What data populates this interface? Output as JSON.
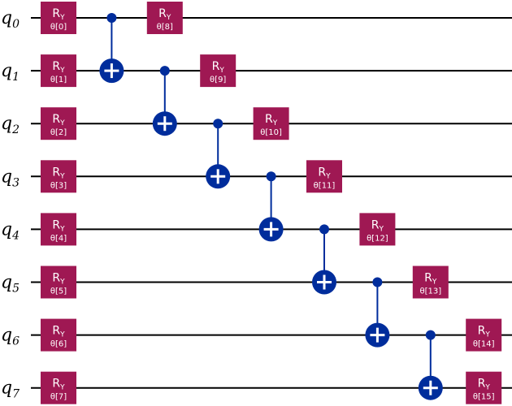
{
  "qubits": [
    {
      "name": "q",
      "index": "0"
    },
    {
      "name": "q",
      "index": "1"
    },
    {
      "name": "q",
      "index": "2"
    },
    {
      "name": "q",
      "index": "3"
    },
    {
      "name": "q",
      "index": "4"
    },
    {
      "name": "q",
      "index": "5"
    },
    {
      "name": "q",
      "index": "6"
    },
    {
      "name": "q",
      "index": "7"
    }
  ],
  "gates": [
    {
      "type": "RY",
      "label": "R",
      "sub": "Y",
      "param": "θ[0]",
      "qubit": 0,
      "column": 0
    },
    {
      "type": "RY",
      "label": "R",
      "sub": "Y",
      "param": "θ[1]",
      "qubit": 1,
      "column": 0
    },
    {
      "type": "RY",
      "label": "R",
      "sub": "Y",
      "param": "θ[2]",
      "qubit": 2,
      "column": 0
    },
    {
      "type": "RY",
      "label": "R",
      "sub": "Y",
      "param": "θ[3]",
      "qubit": 3,
      "column": 0
    },
    {
      "type": "RY",
      "label": "R",
      "sub": "Y",
      "param": "θ[4]",
      "qubit": 4,
      "column": 0
    },
    {
      "type": "RY",
      "label": "R",
      "sub": "Y",
      "param": "θ[5]",
      "qubit": 5,
      "column": 0
    },
    {
      "type": "RY",
      "label": "R",
      "sub": "Y",
      "param": "θ[6]",
      "qubit": 6,
      "column": 0
    },
    {
      "type": "RY",
      "label": "R",
      "sub": "Y",
      "param": "θ[7]",
      "qubit": 7,
      "column": 0
    },
    {
      "type": "CX",
      "control": 0,
      "target": 1,
      "column": 1
    },
    {
      "type": "RY",
      "label": "R",
      "sub": "Y",
      "param": "θ[8]",
      "qubit": 0,
      "column": 2
    },
    {
      "type": "CX",
      "control": 1,
      "target": 2,
      "column": 2
    },
    {
      "type": "RY",
      "label": "R",
      "sub": "Y",
      "param": "θ[9]",
      "qubit": 1,
      "column": 3
    },
    {
      "type": "CX",
      "control": 2,
      "target": 3,
      "column": 3
    },
    {
      "type": "RY",
      "label": "R",
      "sub": "Y",
      "param": "θ[10]",
      "qubit": 2,
      "column": 4
    },
    {
      "type": "CX",
      "control": 3,
      "target": 4,
      "column": 4
    },
    {
      "type": "RY",
      "label": "R",
      "sub": "Y",
      "param": "θ[11]",
      "qubit": 3,
      "column": 5
    },
    {
      "type": "CX",
      "control": 4,
      "target": 5,
      "column": 5
    },
    {
      "type": "RY",
      "label": "R",
      "sub": "Y",
      "param": "θ[12]",
      "qubit": 4,
      "column": 6
    },
    {
      "type": "CX",
      "control": 5,
      "target": 6,
      "column": 6
    },
    {
      "type": "RY",
      "label": "R",
      "sub": "Y",
      "param": "θ[13]",
      "qubit": 5,
      "column": 7
    },
    {
      "type": "CX",
      "control": 6,
      "target": 7,
      "column": 7
    },
    {
      "type": "RY",
      "label": "R",
      "sub": "Y",
      "param": "θ[14]",
      "qubit": 6,
      "column": 8
    },
    {
      "type": "RY",
      "label": "R",
      "sub": "Y",
      "param": "θ[15]",
      "qubit": 7,
      "column": 8
    }
  ],
  "colors": {
    "wire": "#000000",
    "ry_gate": "#9f1853",
    "cx_gate": "#002d9c",
    "gate_text": "#ffffff",
    "background": "#ffffff"
  }
}
